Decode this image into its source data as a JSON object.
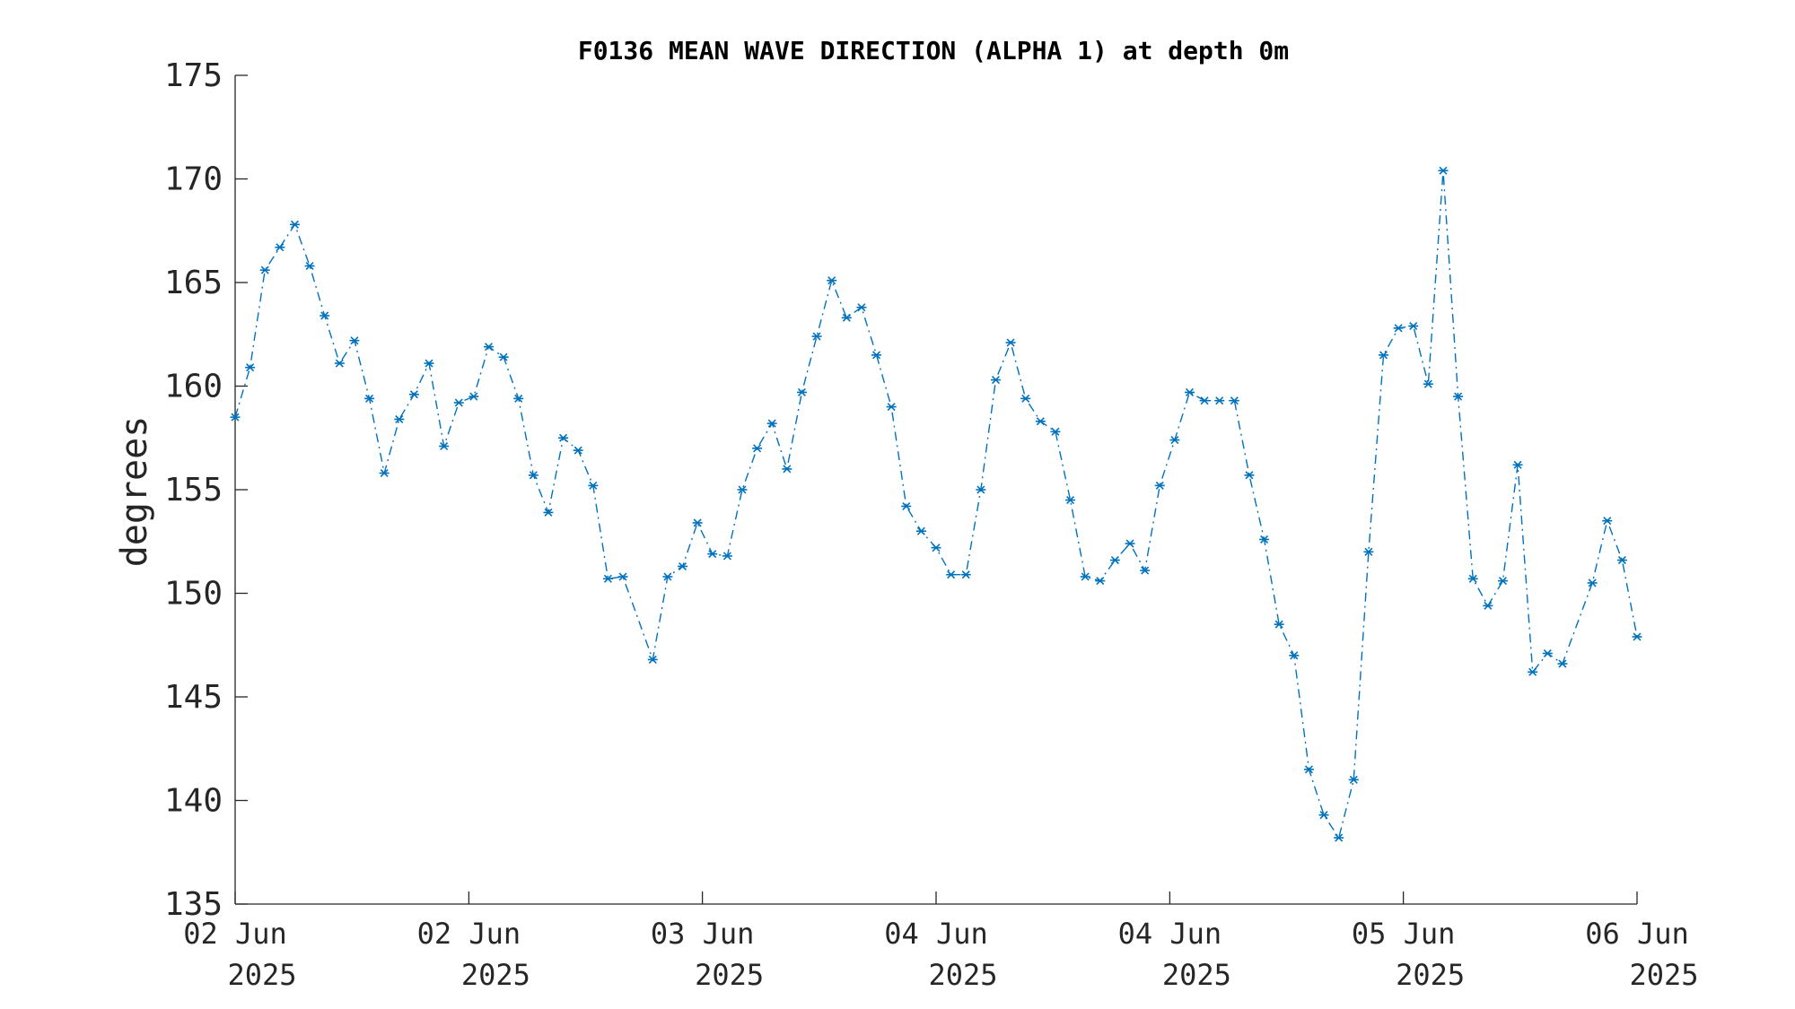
{
  "chart_data": {
    "type": "line",
    "title": "F0136 MEAN WAVE DIRECTION (ALPHA 1) at depth 0m",
    "xlabel": "",
    "ylabel": "degrees",
    "ylim": [
      135,
      175
    ],
    "yticks": [
      135,
      140,
      145,
      150,
      155,
      160,
      165,
      170,
      175
    ],
    "xlim": [
      0,
      94
    ],
    "xticks": [
      {
        "at": 0,
        "line1": "02 Jun",
        "line2": "2025"
      },
      {
        "at": 15.67,
        "line1": "02 Jun",
        "line2": "2025"
      },
      {
        "at": 31.33,
        "line1": "03 Jun",
        "line2": "2025"
      },
      {
        "at": 47,
        "line1": "04 Jun",
        "line2": "2025"
      },
      {
        "at": 62.67,
        "line1": "04 Jun",
        "line2": "2025"
      },
      {
        "at": 78.33,
        "line1": "05 Jun",
        "line2": "2025"
      },
      {
        "at": 94,
        "line1": "06 Jun",
        "line2": "2025"
      }
    ],
    "grid": false,
    "colors": {
      "series": "#0072BD",
      "axis": "#262626"
    },
    "series": [
      {
        "name": "",
        "marker": "asterisk",
        "line_style": "dash-dot",
        "x": [
          0,
          1,
          2,
          3,
          4,
          5,
          6,
          7,
          8,
          9,
          10,
          11,
          12,
          13,
          14,
          15,
          16,
          17,
          18,
          19,
          20,
          21,
          22,
          23,
          24,
          25,
          26,
          28,
          29,
          30,
          31,
          32,
          33,
          34,
          35,
          36,
          37,
          38,
          39,
          40,
          41,
          42,
          43,
          44,
          45,
          46,
          47,
          48,
          49,
          50,
          51,
          52,
          53,
          54,
          55,
          56,
          57,
          58,
          59,
          60,
          61,
          62,
          63,
          64,
          65,
          66,
          67,
          68,
          69,
          70,
          71,
          72,
          73,
          74,
          75,
          76,
          77,
          78,
          79,
          80,
          81,
          82,
          83,
          84,
          85,
          86,
          87,
          88,
          89,
          91,
          92,
          93,
          94
        ],
        "y": [
          158.5,
          160.9,
          165.6,
          166.7,
          167.8,
          165.8,
          163.4,
          161.1,
          162.2,
          159.4,
          155.8,
          158.4,
          159.6,
          161.1,
          157.1,
          159.2,
          159.5,
          161.9,
          161.4,
          159.4,
          155.7,
          153.9,
          157.5,
          156.9,
          155.2,
          150.7,
          150.8,
          146.8,
          150.8,
          151.3,
          153.4,
          151.9,
          151.8,
          155.0,
          157.0,
          158.2,
          156.0,
          159.7,
          162.4,
          165.1,
          163.3,
          163.8,
          161.5,
          159.0,
          154.2,
          153.0,
          152.2,
          150.9,
          150.9,
          155.0,
          160.3,
          162.1,
          159.4,
          158.3,
          157.8,
          154.5,
          150.8,
          150.6,
          151.6,
          152.4,
          151.1,
          155.2,
          157.4,
          159.7,
          159.3,
          159.3,
          159.3,
          155.7,
          152.6,
          148.5,
          147.0,
          141.5,
          139.3,
          138.2,
          141.0,
          152.0,
          161.5,
          162.8,
          162.9,
          160.1,
          170.4,
          159.5,
          150.7,
          149.4,
          150.6,
          156.2,
          146.2,
          147.1,
          146.6,
          150.5,
          153.5,
          151.6,
          147.9
        ]
      }
    ]
  }
}
